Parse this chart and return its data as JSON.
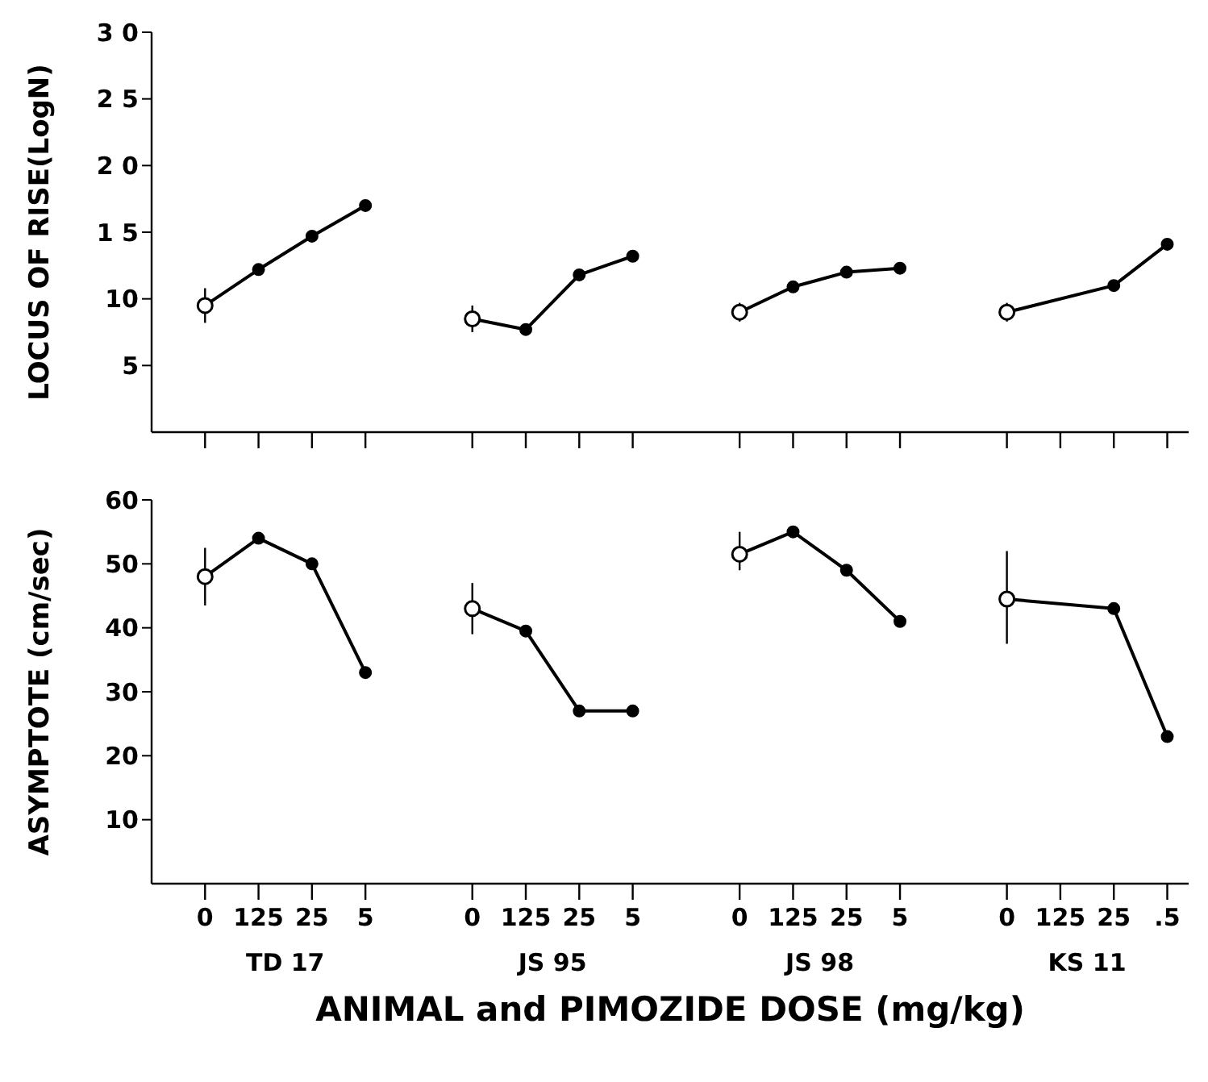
{
  "chart_data": [
    {
      "type": "line",
      "ylabel": "LOCUS OF RISE(LogN)",
      "categories": [
        "0",
        "125",
        "25",
        "5",
        null,
        "0",
        "125",
        "25",
        "5",
        null,
        "0",
        "125",
        "25",
        "5",
        null,
        "0",
        "125",
        "25",
        ".5"
      ],
      "series": [
        {
          "color": "#000000",
          "values": [
            9.5,
            12.2,
            14.7,
            17.0,
            null,
            null,
            null,
            null,
            null,
            null,
            null,
            null,
            null,
            null,
            null,
            null,
            null,
            null,
            null
          ],
          "errors": [
            [
              8.2,
              10.8
            ],
            null,
            null,
            null,
            null,
            null,
            null,
            null,
            null,
            null,
            null,
            null,
            null,
            null,
            null,
            null,
            null,
            null,
            null
          ]
        },
        {
          "color": "#000000",
          "values": [
            null,
            null,
            null,
            null,
            null,
            8.5,
            7.7,
            11.8,
            13.2,
            null,
            null,
            null,
            null,
            null,
            null,
            null,
            null,
            null,
            null
          ],
          "errors": [
            null,
            null,
            null,
            null,
            null,
            [
              7.5,
              9.5
            ],
            null,
            null,
            null,
            null,
            null,
            null,
            null,
            null,
            null,
            null,
            null,
            null,
            null
          ]
        },
        {
          "color": "#000000",
          "values": [
            null,
            null,
            null,
            null,
            null,
            null,
            null,
            null,
            null,
            null,
            9.0,
            10.9,
            12.0,
            12.3,
            null,
            null,
            null,
            null,
            null
          ],
          "errors": [
            null,
            null,
            null,
            null,
            null,
            null,
            null,
            null,
            null,
            null,
            [
              8.3,
              9.7
            ],
            null,
            null,
            null,
            null,
            null,
            null,
            null,
            null
          ]
        },
        {
          "color": "#000000",
          "values": [
            null,
            null,
            null,
            null,
            null,
            null,
            null,
            null,
            null,
            null,
            null,
            null,
            null,
            null,
            null,
            9.0,
            null,
            11.0,
            14.1
          ],
          "errors": [
            null,
            null,
            null,
            null,
            null,
            null,
            null,
            null,
            null,
            null,
            null,
            null,
            null,
            null,
            null,
            [
              8.3,
              9.7
            ],
            null,
            null,
            null
          ]
        }
      ],
      "ylim": [
        0,
        30
      ],
      "yticks": [
        {
          "value": 5,
          "label": "5"
        },
        10,
        {
          "value": 15,
          "label": "1 5"
        },
        {
          "value": 20,
          "label": "2 0"
        },
        {
          "value": 25,
          "label": "2 5"
        },
        {
          "value": 30,
          "label": "3 0"
        }
      ],
      "tick_labels": "y",
      "marker": "circle",
      "grid": false
    },
    {
      "type": "line",
      "ylabel": "ASYMPTOTE (cm/sec)",
      "xlabel": "ANIMAL and PIMOZIDE DOSE (mg/kg)",
      "annotations": [
        "TD 17",
        "JS 95",
        "JS 98",
        "KS 11"
      ],
      "categories": [
        "0",
        "125",
        "25",
        "5",
        null,
        "0",
        "125",
        "25",
        "5",
        null,
        "0",
        "125",
        "25",
        "5",
        null,
        "0",
        "125",
        "25",
        ".5"
      ],
      "series": [
        {
          "color": "#000000",
          "values": [
            48,
            54,
            50,
            33,
            null,
            null,
            null,
            null,
            null,
            null,
            null,
            null,
            null,
            null,
            null,
            null,
            null,
            null,
            null
          ],
          "errors": [
            [
              43.5,
              52.5
            ],
            null,
            null,
            null,
            null,
            null,
            null,
            null,
            null,
            null,
            null,
            null,
            null,
            null,
            null,
            null,
            null,
            null,
            null
          ]
        },
        {
          "color": "#000000",
          "values": [
            null,
            null,
            null,
            null,
            null,
            43,
            39.5,
            27,
            27,
            null,
            null,
            null,
            null,
            null,
            null,
            null,
            null,
            null,
            null
          ],
          "errors": [
            null,
            null,
            null,
            null,
            null,
            [
              39,
              47
            ],
            null,
            null,
            null,
            null,
            null,
            null,
            null,
            null,
            null,
            null,
            null,
            null,
            null
          ]
        },
        {
          "color": "#000000",
          "values": [
            null,
            null,
            null,
            null,
            null,
            null,
            null,
            null,
            null,
            null,
            51.5,
            55,
            49,
            41,
            null,
            null,
            null,
            null,
            null
          ],
          "errors": [
            null,
            null,
            null,
            null,
            null,
            null,
            null,
            null,
            null,
            null,
            [
              49,
              55
            ],
            null,
            null,
            null,
            null,
            null,
            null,
            null,
            null
          ]
        },
        {
          "color": "#000000",
          "values": [
            null,
            null,
            null,
            null,
            null,
            null,
            null,
            null,
            null,
            null,
            null,
            null,
            null,
            null,
            null,
            44.5,
            null,
            43,
            23
          ],
          "errors": [
            null,
            null,
            null,
            null,
            null,
            null,
            null,
            null,
            null,
            null,
            null,
            null,
            null,
            null,
            null,
            [
              37.5,
              52
            ],
            null,
            null,
            null
          ]
        }
      ],
      "ylim": [
        0,
        60
      ],
      "yticks": [
        10,
        20,
        30,
        40,
        50,
        60
      ],
      "marker": "circle",
      "grid": false
    }
  ]
}
